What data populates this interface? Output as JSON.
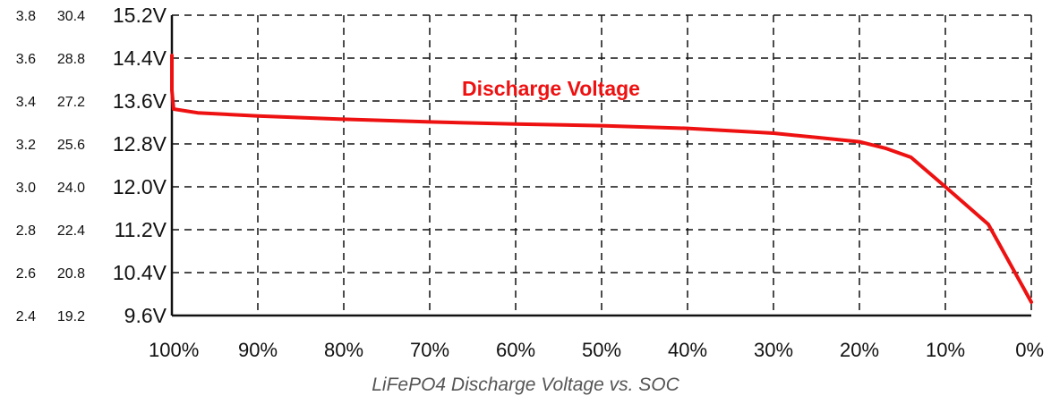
{
  "chart_data": {
    "type": "line",
    "title": "",
    "xlabel": "",
    "ylabel": "",
    "caption": "LiFePO4 Discharge Voltage vs. SOC",
    "x_reversed": true,
    "xlim": [
      0,
      100
    ],
    "x_ticks": [
      100,
      90,
      80,
      70,
      60,
      50,
      40,
      30,
      20,
      10,
      0
    ],
    "x_tick_labels": [
      "100%",
      "90%",
      "80%",
      "70%",
      "60%",
      "50%",
      "40%",
      "30%",
      "20%",
      "10%",
      "0%"
    ],
    "ylim": [
      9.6,
      15.2
    ],
    "y_ticks": [
      15.2,
      14.4,
      13.6,
      12.8,
      12.0,
      11.2,
      10.4,
      9.6
    ],
    "y_axes": [
      {
        "labels": [
          "3.8",
          "3.6",
          "3.4",
          "3.2",
          "3.0",
          "2.8",
          "2.6",
          "2.4"
        ]
      },
      {
        "labels": [
          "30.4",
          "28.8",
          "27.2",
          "25.6",
          "24.0",
          "22.4",
          "20.8",
          "19.2"
        ]
      },
      {
        "labels": [
          "15.2V",
          "14.4V",
          "13.6V",
          "12.8V",
          "12.0V",
          "11.2V",
          "10.4V",
          "9.6V"
        ]
      }
    ],
    "grid": true,
    "series": [
      {
        "name": "Discharge Voltage",
        "color": "#ee1111",
        "x": [
          100,
          100,
          99.8,
          97,
          90,
          80,
          70,
          60,
          50,
          40,
          30,
          25,
          20,
          17,
          14,
          10,
          5,
          0
        ],
        "y": [
          14.45,
          13.8,
          13.45,
          13.38,
          13.32,
          13.26,
          13.21,
          13.17,
          13.14,
          13.09,
          13.0,
          12.92,
          12.84,
          12.72,
          12.55,
          12.0,
          11.3,
          9.85
        ]
      }
    ]
  }
}
